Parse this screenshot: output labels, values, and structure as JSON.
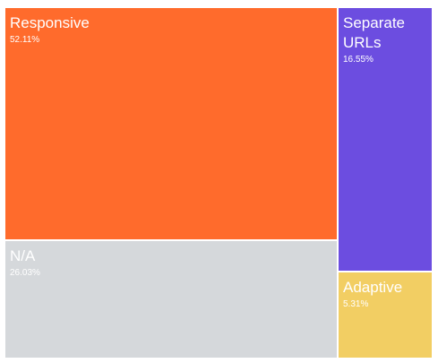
{
  "chart_data": {
    "type": "treemap",
    "items": [
      {
        "name": "Responsive",
        "value": 52.11,
        "label": "52.11%",
        "color": "#ff6b2c"
      },
      {
        "name": "N/A",
        "value": 26.03,
        "label": "26.03%",
        "color": "#d5d8db"
      },
      {
        "name": "Separate URLs",
        "value": 16.55,
        "label": "16.55%",
        "color": "#6c4de0"
      },
      {
        "name": "Adaptive",
        "value": 5.31,
        "label": "5.31%",
        "color": "#f2ce63"
      }
    ]
  }
}
